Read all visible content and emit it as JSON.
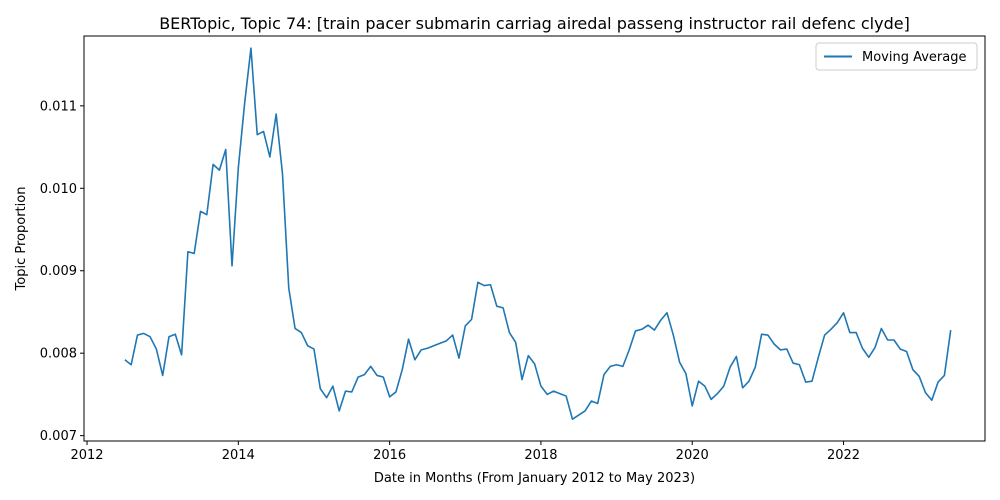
{
  "chart_data": {
    "type": "line",
    "title": "BERTopic, Topic 74: [train pacer submarin carriag airedal passeng instructor rail defenc clyde]",
    "xlabel": "Date in Months (From January 2012 to May 2023)",
    "ylabel": "Topic Proportion",
    "xlim": [
      2011.96,
      2023.87
    ],
    "ylim": [
      0.006935,
      0.011847
    ],
    "x_ticks": [
      2012,
      2014,
      2016,
      2018,
      2020,
      2022
    ],
    "x_tick_labels": [
      "2012",
      "2014",
      "2016",
      "2018",
      "2020",
      "2022"
    ],
    "y_ticks": [
      0.007,
      0.008,
      0.009,
      0.01,
      0.011
    ],
    "y_tick_labels": [
      "0.007",
      "0.008",
      "0.009",
      "0.010",
      "0.011"
    ],
    "legend": "top-right",
    "grid": false,
    "color": "#1f77b4",
    "series": [
      {
        "name": "Moving Average",
        "x_start": "2012-07",
        "points_per_year": 12,
        "values": [
          0.00792,
          0.00786,
          0.00822,
          0.00824,
          0.0082,
          0.00805,
          0.00773,
          0.0082,
          0.00823,
          0.00798,
          0.00923,
          0.00921,
          0.00972,
          0.00968,
          0.01029,
          0.01022,
          0.01047,
          0.00906,
          0.01025,
          0.01103,
          0.0117,
          0.01065,
          0.01069,
          0.01038,
          0.0109,
          0.01018,
          0.00879,
          0.0083,
          0.00825,
          0.00809,
          0.00805,
          0.00757,
          0.00746,
          0.0076,
          0.0073,
          0.00754,
          0.00753,
          0.00771,
          0.00774,
          0.00784,
          0.00773,
          0.00771,
          0.00747,
          0.00753,
          0.0078,
          0.00817,
          0.00792,
          0.00804,
          0.00806,
          0.00809,
          0.00812,
          0.00815,
          0.00822,
          0.00794,
          0.00833,
          0.00841,
          0.00886,
          0.00882,
          0.00883,
          0.00857,
          0.00855,
          0.00825,
          0.00813,
          0.00768,
          0.00797,
          0.00787,
          0.0076,
          0.0075,
          0.00754,
          0.00751,
          0.00748,
          0.0072,
          0.00725,
          0.0073,
          0.00742,
          0.00739,
          0.00774,
          0.00784,
          0.00786,
          0.00784,
          0.00804,
          0.00827,
          0.00829,
          0.00834,
          0.00828,
          0.0084,
          0.00849,
          0.00822,
          0.00789,
          0.00775,
          0.00736,
          0.00766,
          0.0076,
          0.00744,
          0.00751,
          0.0076,
          0.00783,
          0.00796,
          0.00758,
          0.00766,
          0.00783,
          0.00823,
          0.00822,
          0.00811,
          0.00804,
          0.00805,
          0.00788,
          0.00786,
          0.00765,
          0.00766,
          0.00795,
          0.00822,
          0.00829,
          0.00837,
          0.00849,
          0.00825,
          0.00825,
          0.00806,
          0.00795,
          0.00807,
          0.0083,
          0.00816,
          0.00816,
          0.00805,
          0.00802,
          0.0078,
          0.00772,
          0.00752,
          0.00743,
          0.00765,
          0.00773,
          0.00828
        ]
      }
    ]
  }
}
